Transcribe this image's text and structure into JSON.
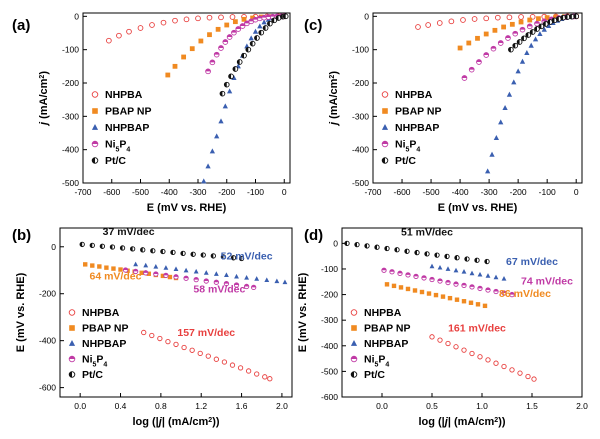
{
  "chart_data": [
    {
      "panel": "(a)",
      "type": "scatter",
      "xlabel": "E (mV vs. RHE)",
      "ylabel": "j (mA/cm2)",
      "ylabel_parts": {
        "j": "j",
        "rest": " (mA/cm",
        "sup": "2",
        "close": ")"
      },
      "xlim": [
        -700,
        20
      ],
      "ylim": [
        -500,
        10
      ],
      "xticks": [
        -700,
        -600,
        -500,
        -400,
        -300,
        -200,
        -100,
        0
      ],
      "yticks": [
        0,
        -100,
        -200,
        -300,
        -400,
        -500
      ],
      "legend": "bottom-left",
      "series": [
        {
          "name": "NHPBA",
          "marker": "ring",
          "color": "#e8403f",
          "x": [
            -610,
            -575,
            -540,
            -500,
            -460,
            -420,
            -380,
            -340,
            -300,
            -260,
            -220,
            -180,
            -140,
            -100,
            -60,
            -20,
            0
          ],
          "y": [
            -73,
            -58,
            -46,
            -35,
            -26,
            -19,
            -13,
            -9,
            -6,
            -4,
            -3,
            -2,
            -1.5,
            -1,
            -0.5,
            -0.2,
            0
          ]
        },
        {
          "name": "PBAP NP",
          "marker": "square",
          "color": "#f08a21",
          "x": [
            -405,
            -380,
            -350,
            -320,
            -290,
            -260,
            -230,
            -200,
            -170,
            -140,
            -110,
            -80,
            -50,
            -20,
            0
          ],
          "y": [
            -176,
            -150,
            -122,
            -97,
            -74,
            -55,
            -39,
            -26,
            -16,
            -9,
            -5,
            -2,
            -1,
            -0.3,
            0
          ]
        },
        {
          "name": "NHPBAP",
          "marker": "triangle",
          "color": "#3a5fb0",
          "x": [
            -280,
            -265,
            -250,
            -235,
            -220,
            -205,
            -190,
            -175,
            -160,
            -145,
            -130,
            -115,
            -100,
            -85,
            -70,
            -55,
            -40,
            -25,
            -10,
            0
          ],
          "y": [
            -495,
            -450,
            -405,
            -360,
            -315,
            -270,
            -225,
            -185,
            -150,
            -118,
            -90,
            -66,
            -46,
            -30,
            -18,
            -10,
            -5,
            -2,
            -1,
            0
          ]
        },
        {
          "name": "Ni5P4",
          "name_parts": [
            "Ni",
            "5",
            "P",
            "4"
          ],
          "marker": "halfcircle",
          "color": "#c03aa5",
          "x": [
            -265,
            -250,
            -235,
            -220,
            -205,
            -190,
            -175,
            -160,
            -145,
            -130,
            -115,
            -100,
            -85,
            -70,
            -55,
            -40,
            -25,
            -10,
            0
          ],
          "y": [
            -165,
            -138,
            -115,
            -95,
            -77,
            -62,
            -49,
            -38,
            -29,
            -21,
            -15,
            -10,
            -6,
            -4,
            -2,
            -1,
            -0.5,
            -0.2,
            0
          ]
        },
        {
          "name": "Pt/C",
          "marker": "halfdisk",
          "color": "#111111",
          "x": [
            -215,
            -200,
            -185,
            -170,
            -155,
            -140,
            -125,
            -110,
            -95,
            -80,
            -65,
            -50,
            -35,
            -20,
            -5,
            5
          ],
          "y": [
            -232,
            -205,
            -180,
            -158,
            -137,
            -118,
            -100,
            -82,
            -65,
            -49,
            -35,
            -22,
            -12,
            -5,
            -1,
            0
          ]
        }
      ]
    },
    {
      "panel": "(c)",
      "type": "scatter",
      "xlabel": "E (mV vs. RHE)",
      "ylabel": "j (mA/cm2)",
      "ylabel_parts": {
        "j": "j",
        "rest": " (mA/cm",
        "sup": "2",
        "close": ")"
      },
      "xlim": [
        -700,
        20
      ],
      "ylim": [
        -500,
        10
      ],
      "xticks": [
        -700,
        -600,
        -500,
        -400,
        -300,
        -200,
        -100,
        0
      ],
      "yticks": [
        0,
        -100,
        -200,
        -300,
        -400,
        -500
      ],
      "legend": "bottom-left",
      "series": [
        {
          "name": "NHPBA",
          "marker": "ring",
          "color": "#e8403f",
          "x": [
            -545,
            -510,
            -470,
            -430,
            -390,
            -350,
            -310,
            -270,
            -230,
            -190,
            -150,
            -110,
            -70,
            -30,
            0
          ],
          "y": [
            -32,
            -26,
            -20,
            -15,
            -11,
            -8,
            -6,
            -4,
            -3,
            -2,
            -1.5,
            -1,
            -0.5,
            -0.2,
            0
          ]
        },
        {
          "name": "PBAP NP",
          "marker": "square",
          "color": "#f08a21",
          "x": [
            -400,
            -370,
            -340,
            -310,
            -280,
            -250,
            -220,
            -190,
            -160,
            -130,
            -100,
            -70,
            -40,
            -10,
            0
          ],
          "y": [
            -95,
            -80,
            -66,
            -53,
            -42,
            -32,
            -24,
            -17,
            -11,
            -7,
            -4,
            -2,
            -1,
            -0.3,
            0
          ]
        },
        {
          "name": "NHPBAP",
          "marker": "triangle",
          "color": "#3a5fb0",
          "x": [
            -305,
            -290,
            -275,
            -260,
            -245,
            -230,
            -215,
            -200,
            -185,
            -170,
            -155,
            -140,
            -125,
            -110,
            -95,
            -80,
            -65,
            -50,
            -35,
            -20,
            -5
          ],
          "y": [
            -465,
            -415,
            -365,
            -318,
            -275,
            -235,
            -198,
            -165,
            -136,
            -110,
            -88,
            -69,
            -53,
            -40,
            -29,
            -20,
            -13,
            -8,
            -4,
            -2,
            -0.5
          ]
        },
        {
          "name": "Ni5P4",
          "name_parts": [
            "Ni",
            "5",
            "P",
            "4"
          ],
          "marker": "halfcircle",
          "color": "#c03aa5",
          "x": [
            -385,
            -360,
            -335,
            -310,
            -285,
            -260,
            -235,
            -210,
            -185,
            -160,
            -135,
            -110,
            -85,
            -60,
            -35,
            -10,
            0
          ],
          "y": [
            -185,
            -160,
            -137,
            -116,
            -97,
            -80,
            -65,
            -52,
            -40,
            -30,
            -22,
            -15,
            -9,
            -5,
            -2,
            -0.5,
            0
          ]
        },
        {
          "name": "Pt/C",
          "marker": "halfdisk",
          "color": "#111111",
          "x": [
            -225,
            -210,
            -195,
            -180,
            -165,
            -150,
            -135,
            -120,
            -105,
            -90,
            -75,
            -60,
            -45,
            -30,
            -15,
            0
          ],
          "y": [
            -100,
            -88,
            -77,
            -66,
            -56,
            -47,
            -38,
            -30,
            -23,
            -17,
            -12,
            -8,
            -4,
            -2,
            -1,
            0
          ]
        }
      ]
    },
    {
      "panel": "(b)",
      "type": "scatter",
      "xlabel": "log (|j| (mA/cm2))",
      "xlabel_parts": {
        "pre": "log (|",
        "j": "j",
        "mid": "| (mA/cm",
        "sup": "2",
        "close": "))"
      },
      "ylabel": "E (mV vs. RHE)",
      "xlim": [
        -0.2,
        2.1
      ],
      "ylim": [
        -640,
        80
      ],
      "xticks": [
        "0.0",
        "0.4",
        "0.8",
        "1.2",
        "1.6",
        "2.0"
      ],
      "yticks": [
        0,
        -200,
        -400,
        -600
      ],
      "legend": "bottom-left",
      "series": [
        {
          "name": "NHPBA",
          "marker": "ring",
          "color": "#e8403f",
          "x": [
            0.63,
            0.71,
            0.79,
            0.87,
            0.95,
            1.03,
            1.11,
            1.19,
            1.27,
            1.35,
            1.43,
            1.51,
            1.59,
            1.67,
            1.75,
            1.83,
            1.88
          ],
          "y": [
            -365,
            -378,
            -391,
            -404,
            -416,
            -429,
            -441,
            -454,
            -466,
            -479,
            -491,
            -504,
            -516,
            -529,
            -542,
            -554,
            -562
          ]
        },
        {
          "name": "PBAP NP",
          "marker": "square",
          "color": "#f08a21",
          "x": [
            0.05,
            0.12,
            0.19,
            0.26,
            0.33,
            0.4,
            0.47,
            0.54,
            0.61,
            0.68,
            0.75,
            0.82,
            0.89,
            0.95
          ],
          "y": [
            -75,
            -80,
            -84,
            -89,
            -93,
            -97,
            -102,
            -106,
            -111,
            -115,
            -120,
            -124,
            -129,
            -133
          ]
        },
        {
          "name": "NHPBAP",
          "marker": "triangle",
          "color": "#3a5fb0",
          "x": [
            0.55,
            0.65,
            0.75,
            0.85,
            0.95,
            1.05,
            1.15,
            1.25,
            1.35,
            1.45,
            1.55,
            1.65,
            1.75,
            1.85,
            1.95,
            2.03
          ],
          "y": [
            -75,
            -80,
            -85,
            -90,
            -95,
            -101,
            -106,
            -111,
            -116,
            -121,
            -127,
            -132,
            -137,
            -142,
            -147,
            -151
          ]
        },
        {
          "name": "Ni5P4",
          "name_parts": [
            "Ni",
            "5",
            "P",
            "4"
          ],
          "marker": "halfcircle",
          "color": "#c03aa5",
          "x": [
            0.45,
            0.55,
            0.65,
            0.75,
            0.85,
            0.95,
            1.05,
            1.15,
            1.25,
            1.35,
            1.45,
            1.55,
            1.65,
            1.72
          ],
          "y": [
            -99,
            -105,
            -111,
            -116,
            -122,
            -128,
            -134,
            -140,
            -146,
            -151,
            -157,
            -163,
            -169,
            -173
          ]
        },
        {
          "name": "Pt/C",
          "marker": "halfdisk",
          "color": "#111111",
          "x": [
            0.02,
            0.12,
            0.22,
            0.32,
            0.42,
            0.52,
            0.62,
            0.72,
            0.82,
            0.92,
            1.02,
            1.12,
            1.22,
            1.32,
            1.42,
            1.52,
            1.6
          ],
          "y": [
            10,
            6,
            2,
            -1,
            -5,
            -9,
            -13,
            -17,
            -20,
            -24,
            -28,
            -32,
            -35,
            -39,
            -43,
            -47,
            -50
          ]
        }
      ],
      "annotations": [
        {
          "text": "37 mV/dec",
          "color": "#111111",
          "x": 0.48,
          "y": 50
        },
        {
          "text": "52 mV/dec",
          "color": "#3a5fb0",
          "x": 1.65,
          "y": -55
        },
        {
          "text": "64 mV/dec",
          "color": "#f08a21",
          "x": 0.35,
          "y": -140
        },
        {
          "text": "58 mV/dec",
          "color": "#c03aa5",
          "x": 1.38,
          "y": -195
        },
        {
          "text": "157 mV/dec",
          "color": "#e8403f",
          "x": 1.25,
          "y": -380
        }
      ]
    },
    {
      "panel": "(d)",
      "type": "scatter",
      "xlabel": "log (|j| (mA/cm2))",
      "xlabel_parts": {
        "pre": "log (|",
        "j": "j",
        "mid": "| (mA/cm",
        "sup": "2",
        "close": "))"
      },
      "ylabel": "E (mV vs. RHE)",
      "xlim": [
        -0.4,
        2.0
      ],
      "ylim": [
        -600,
        60
      ],
      "xticks": [
        "0.0",
        "0.5",
        "1.0",
        "1.5",
        "2.0"
      ],
      "yticks": [
        0,
        -100,
        -200,
        -300,
        -400,
        -500,
        -600
      ],
      "legend": "bottom-left",
      "series": [
        {
          "name": "NHPBA",
          "marker": "ring",
          "color": "#e8403f",
          "x": [
            0.5,
            0.58,
            0.66,
            0.74,
            0.82,
            0.9,
            0.98,
            1.06,
            1.14,
            1.22,
            1.3,
            1.38,
            1.46,
            1.52
          ],
          "y": [
            -365,
            -378,
            -391,
            -404,
            -417,
            -430,
            -443,
            -455,
            -468,
            -481,
            -494,
            -507,
            -520,
            -530
          ]
        },
        {
          "name": "PBAP NP",
          "marker": "square",
          "color": "#f08a21",
          "x": [
            0.05,
            0.12,
            0.19,
            0.26,
            0.33,
            0.4,
            0.47,
            0.54,
            0.61,
            0.68,
            0.75,
            0.82,
            0.89,
            0.96,
            1.03
          ],
          "y": [
            -160,
            -166,
            -172,
            -178,
            -184,
            -190,
            -196,
            -202,
            -208,
            -214,
            -220,
            -226,
            -232,
            -238,
            -244
          ]
        },
        {
          "name": "NHPBAP",
          "marker": "triangle",
          "color": "#3a5fb0",
          "x": [
            0.5,
            0.58,
            0.66,
            0.74,
            0.82,
            0.9,
            0.98,
            1.06,
            1.14,
            1.22
          ],
          "y": [
            -90,
            -95,
            -100,
            -106,
            -111,
            -117,
            -122,
            -127,
            -133,
            -138
          ]
        },
        {
          "name": "Ni5P4",
          "name_parts": [
            "Ni",
            "5",
            "P",
            "4"
          ],
          "marker": "halfcircle",
          "color": "#c03aa5",
          "x": [
            0.02,
            0.1,
            0.18,
            0.26,
            0.34,
            0.42,
            0.5,
            0.58,
            0.66,
            0.74,
            0.82,
            0.9,
            0.98,
            1.06,
            1.14,
            1.22,
            1.3
          ],
          "y": [
            -105,
            -111,
            -117,
            -123,
            -129,
            -135,
            -141,
            -147,
            -153,
            -159,
            -164,
            -170,
            -176,
            -182,
            -188,
            -194,
            -200
          ]
        },
        {
          "name": "Pt/C",
          "marker": "halfdisk",
          "color": "#111111",
          "x": [
            -0.35,
            -0.25,
            -0.15,
            -0.05,
            0.05,
            0.15,
            0.25,
            0.35,
            0.45,
            0.55,
            0.65,
            0.75,
            0.85,
            0.95,
            1.05
          ],
          "y": [
            0,
            -5,
            -10,
            -15,
            -20,
            -25,
            -31,
            -36,
            -41,
            -46,
            -51,
            -56,
            -61,
            -66,
            -71
          ]
        }
      ],
      "annotations": [
        {
          "text": "51 mV/dec",
          "color": "#111111",
          "x": 0.45,
          "y": 30
        },
        {
          "text": "67 mV/dec",
          "color": "#3a5fb0",
          "x": 1.5,
          "y": -85
        },
        {
          "text": "74 mV/dec",
          "color": "#c03aa5",
          "x": 1.65,
          "y": -160
        },
        {
          "text": "86 mV/dec",
          "color": "#f08a21",
          "x": 1.43,
          "y": -210
        },
        {
          "text": "161 mV/dec",
          "color": "#e8403f",
          "x": 0.95,
          "y": -345
        }
      ]
    }
  ]
}
